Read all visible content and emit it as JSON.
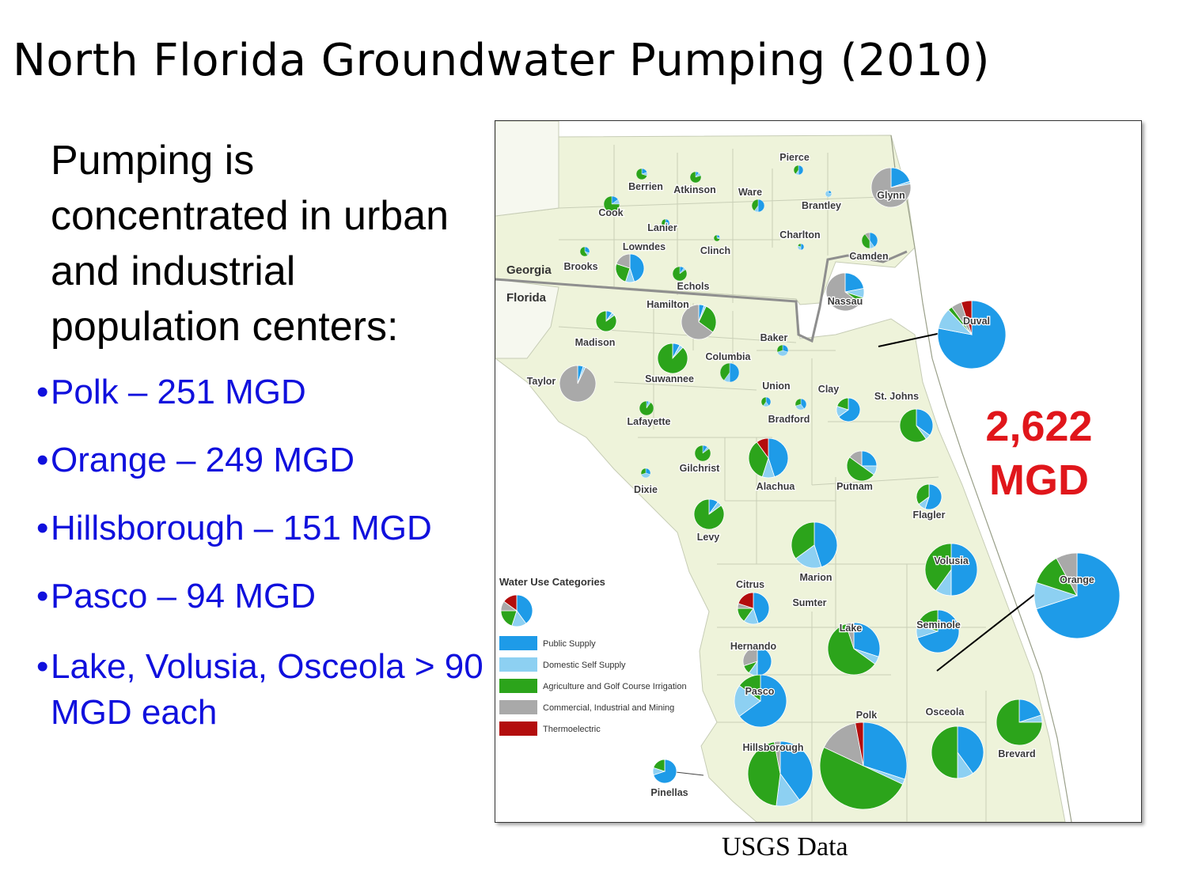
{
  "title": "North Florida Groundwater Pumping (2010)",
  "intro": "Pumping is concentrated in urban and industrial population centers:",
  "bullets": [
    {
      "text": "Polk – 251 MGD"
    },
    {
      "text": "Orange – 249 MGD"
    },
    {
      "text": "Hillsborough – 151 MGD"
    },
    {
      "text": "Pasco – 94 MGD"
    },
    {
      "text": "Lake, Volusia, Osceola > 90 MGD each"
    }
  ],
  "bullet_symbol": "•",
  "map": {
    "state_labels": {
      "georgia": "Georgia",
      "florida": "Florida"
    },
    "total_line1": "2,622",
    "total_line2": "MGD",
    "legend": {
      "title": "Water Use Categories",
      "categories": [
        {
          "key": "ps",
          "label": "Public Supply",
          "color": "#1e9be8"
        },
        {
          "key": "dss",
          "label": "Domestic Self Supply",
          "color": "#8dd0f2"
        },
        {
          "key": "ag",
          "label": "Agriculture and Golf Course Irrigation",
          "color": "#2ca41b"
        },
        {
          "key": "cim",
          "label": "Commercial, Industrial and Mining",
          "color": "#a9a9a9"
        },
        {
          "key": "te",
          "label": "Thermoelectric",
          "color": "#b30d0d"
        }
      ]
    },
    "counties": [
      {
        "name": "Pierce",
        "mix": [
          0.5,
          0.1,
          0.4,
          0,
          0
        ]
      },
      {
        "name": "Berrien",
        "mix": [
          0.2,
          0.1,
          0.7,
          0,
          0
        ]
      },
      {
        "name": "Atkinson",
        "mix": [
          0.1,
          0.1,
          0.8,
          0,
          0
        ]
      },
      {
        "name": "Ware",
        "mix": [
          0.5,
          0.1,
          0.4,
          0,
          0
        ]
      },
      {
        "name": "Glynn",
        "mix": [
          0.2,
          0.02,
          0,
          0.78,
          0
        ]
      },
      {
        "name": "Cook",
        "mix": [
          0.15,
          0.1,
          0.75,
          0,
          0
        ]
      },
      {
        "name": "Brantley",
        "mix": [
          0.2,
          0.8,
          0,
          0,
          0
        ]
      },
      {
        "name": "Lanier",
        "mix": [
          0.4,
          0.2,
          0.4,
          0,
          0
        ]
      },
      {
        "name": "Charlton",
        "mix": [
          0.5,
          0.3,
          0.2,
          0,
          0
        ]
      },
      {
        "name": "Lowndes",
        "mix": [
          0.45,
          0.1,
          0.25,
          0.2,
          0
        ]
      },
      {
        "name": "Clinch",
        "mix": [
          0.2,
          0.1,
          0.7,
          0,
          0
        ]
      },
      {
        "name": "Camden",
        "mix": [
          0.4,
          0.1,
          0.4,
          0.1,
          0
        ]
      },
      {
        "name": "Brooks",
        "mix": [
          0.3,
          0.1,
          0.6,
          0,
          0
        ]
      },
      {
        "name": "Echols",
        "mix": [
          0.1,
          0.05,
          0.85,
          0,
          0
        ]
      },
      {
        "name": "Nassau",
        "mix": [
          0.22,
          0.08,
          0.05,
          0.65,
          0
        ]
      },
      {
        "name": "Hamilton",
        "mix": [
          0.05,
          0.02,
          0.28,
          0.65,
          0
        ]
      },
      {
        "name": "Madison",
        "mix": [
          0.1,
          0.05,
          0.85,
          0,
          0
        ]
      },
      {
        "name": "Duval",
        "mix": [
          0.78,
          0.1,
          0.02,
          0.05,
          0.05
        ]
      },
      {
        "name": "Baker",
        "mix": [
          0.3,
          0.4,
          0.3,
          0,
          0
        ]
      },
      {
        "name": "Suwannee",
        "mix": [
          0.08,
          0.04,
          0.88,
          0,
          0
        ]
      },
      {
        "name": "Columbia",
        "mix": [
          0.5,
          0.1,
          0.4,
          0,
          0
        ]
      },
      {
        "name": "Taylor",
        "mix": [
          0.05,
          0.02,
          0,
          0.93,
          0
        ]
      },
      {
        "name": "Union",
        "mix": [
          0.4,
          0.2,
          0.4,
          0,
          0
        ]
      },
      {
        "name": "Clay",
        "mix": [
          0.65,
          0.15,
          0.2,
          0,
          0
        ]
      },
      {
        "name": "St. Johns",
        "mix": [
          0.35,
          0.05,
          0.6,
          0,
          0
        ]
      },
      {
        "name": "Bradford",
        "mix": [
          0.4,
          0.3,
          0.3,
          0,
          0
        ]
      },
      {
        "name": "Lafayette",
        "mix": [
          0.05,
          0.05,
          0.9,
          0,
          0
        ]
      },
      {
        "name": "Gilchrist",
        "mix": [
          0.1,
          0.05,
          0.85,
          0,
          0
        ]
      },
      {
        "name": "Alachua",
        "mix": [
          0.45,
          0.1,
          0.35,
          0,
          0.1
        ]
      },
      {
        "name": "Putnam",
        "mix": [
          0.25,
          0.1,
          0.5,
          0.15,
          0
        ]
      },
      {
        "name": "Dixie",
        "mix": [
          0.3,
          0.4,
          0.3,
          0,
          0
        ]
      },
      {
        "name": "Flagler",
        "mix": [
          0.55,
          0.1,
          0.35,
          0,
          0
        ]
      },
      {
        "name": "Levy",
        "mix": [
          0.1,
          0.05,
          0.85,
          0,
          0
        ]
      },
      {
        "name": "Marion",
        "mix": [
          0.45,
          0.2,
          0.35,
          0,
          0
        ]
      },
      {
        "name": "Volusia",
        "mix": [
          0.5,
          0.1,
          0.4,
          0,
          0
        ]
      },
      {
        "name": "Orange",
        "mix": [
          0.7,
          0.1,
          0.12,
          0.08,
          0
        ]
      },
      {
        "name": "Citrus",
        "mix": [
          0.45,
          0.15,
          0.15,
          0.05,
          0.2
        ]
      },
      {
        "name": "Sumter",
        "mix": [
          0.45,
          0.05,
          0.5,
          0,
          0
        ]
      },
      {
        "name": "Lake",
        "mix": [
          0.3,
          0.05,
          0.6,
          0.05,
          0
        ]
      },
      {
        "name": "Seminole",
        "mix": [
          0.7,
          0.1,
          0.2,
          0,
          0
        ]
      },
      {
        "name": "Hernando",
        "mix": [
          0.5,
          0.1,
          0.1,
          0.3,
          0
        ]
      },
      {
        "name": "Pasco",
        "mix": [
          0.65,
          0.2,
          0.15,
          0,
          0
        ]
      },
      {
        "name": "Polk",
        "mix": [
          0.3,
          0.02,
          0.5,
          0.15,
          0.03
        ]
      },
      {
        "name": "Osceola",
        "mix": [
          0.4,
          0.1,
          0.5,
          0,
          0
        ]
      },
      {
        "name": "Hillsborough",
        "mix": [
          0.4,
          0.12,
          0.45,
          0.03,
          0
        ]
      },
      {
        "name": "Brevard",
        "mix": [
          0.2,
          0.05,
          0.75,
          0,
          0
        ]
      },
      {
        "name": "Pinellas",
        "mix": [
          0.7,
          0.1,
          0.2,
          0,
          0
        ]
      }
    ]
  },
  "source": "USGS Data"
}
